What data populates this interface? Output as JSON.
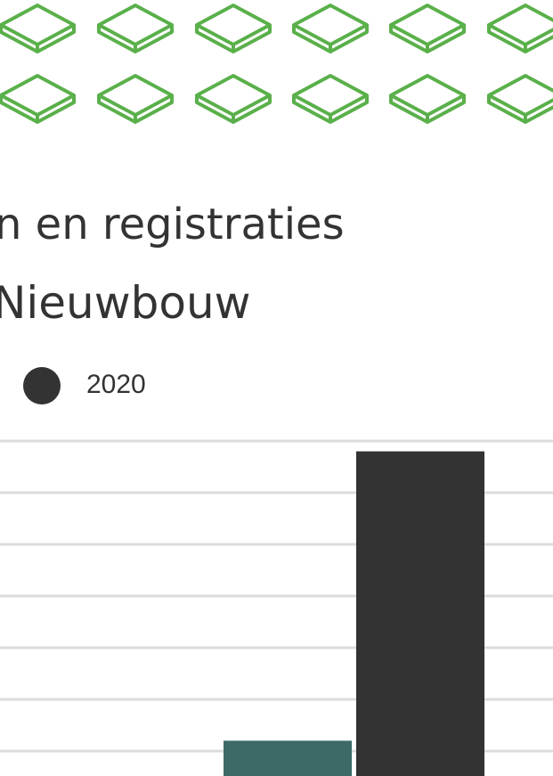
{
  "chart_data": {
    "type": "bar",
    "title": "n en registraties",
    "subtitle": "Nieuwbouw",
    "categories": [
      null
    ],
    "series": [
      {
        "color": "#3d6a66",
        "values": [
          1.2
        ]
      },
      {
        "name": "2020",
        "color": "#333333",
        "values": [
          6.8
        ]
      }
    ],
    "ylim": [
      0,
      7
    ],
    "yticks": [
      1,
      2,
      3,
      4,
      5,
      6,
      7
    ],
    "grid": true
  }
}
